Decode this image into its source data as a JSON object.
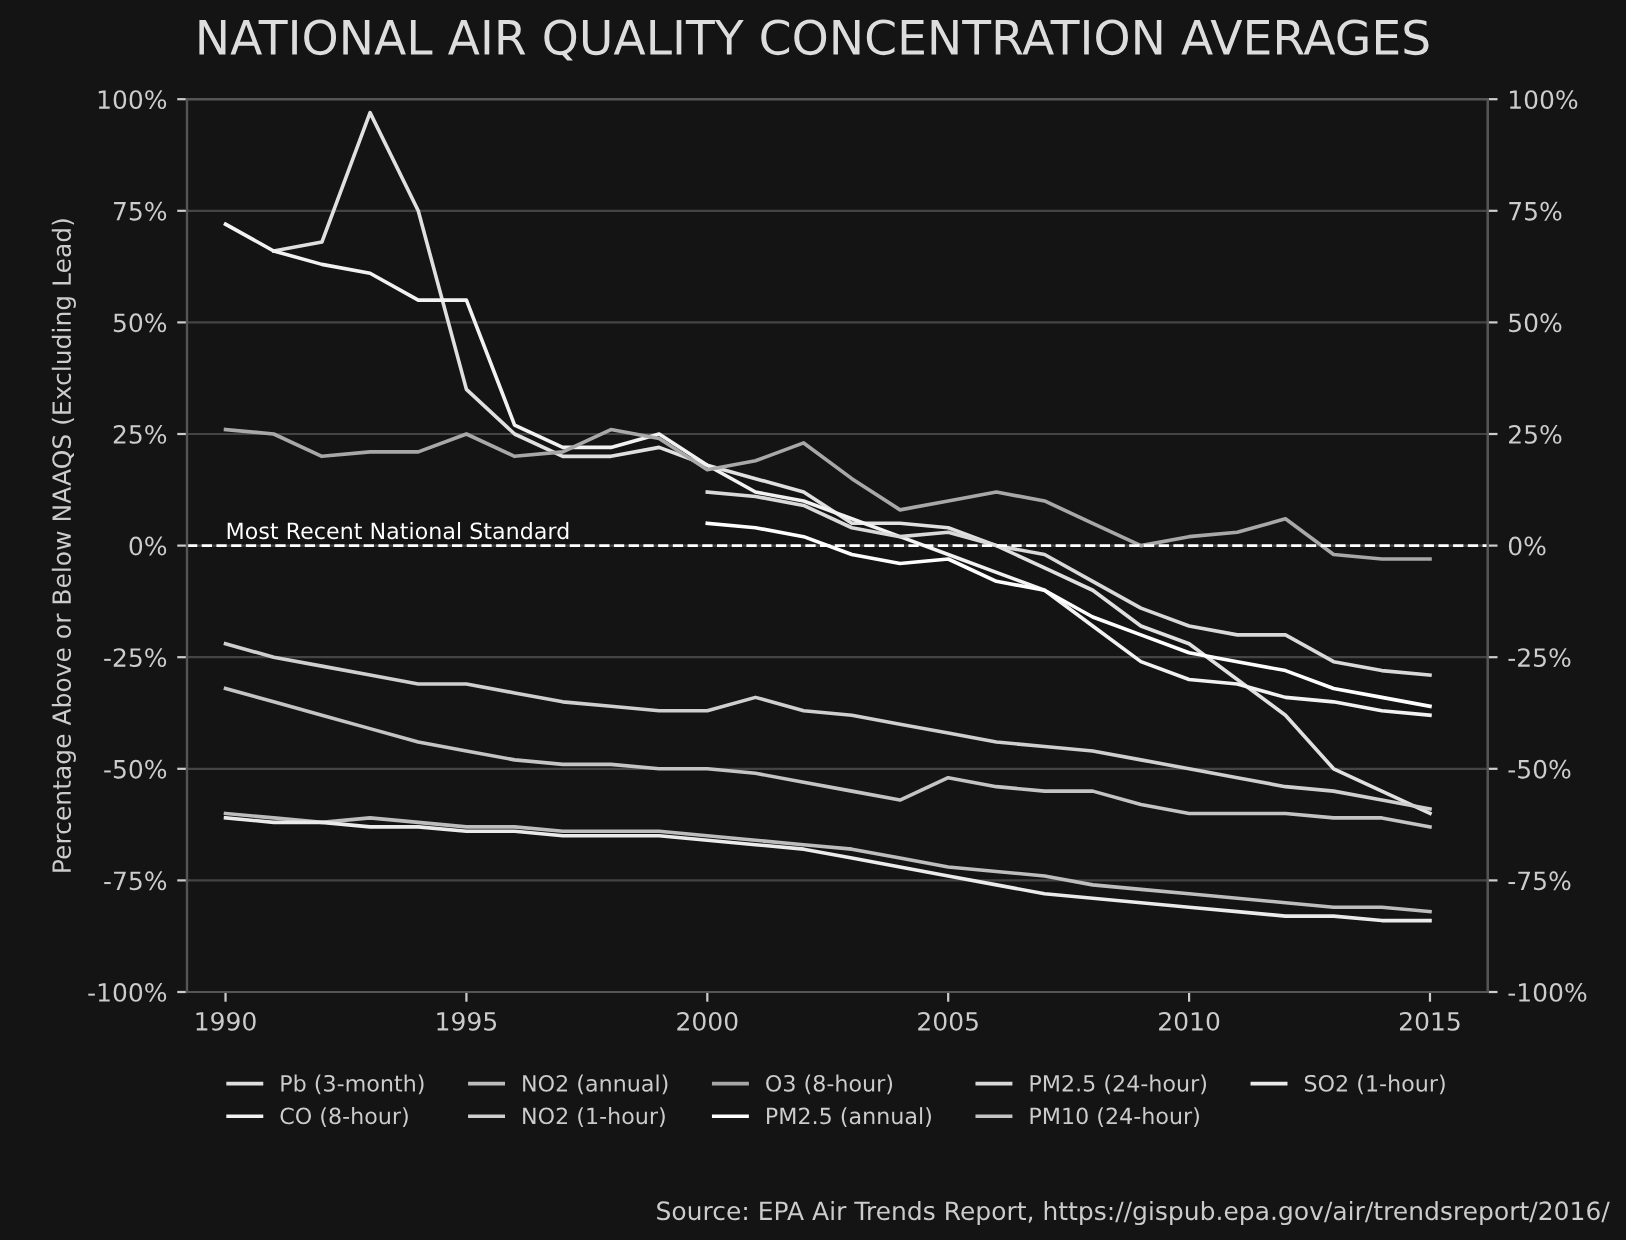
{
  "chart_data": {
    "type": "line",
    "title": "NATIONAL AIR QUALITY CONCENTRATION AVERAGES",
    "ylabel": "Percentage Above or Below NAAQS (Excluding Lead)",
    "x": [
      1990,
      1991,
      1992,
      1993,
      1994,
      1995,
      1996,
      1997,
      1998,
      1999,
      2000,
      2001,
      2002,
      2003,
      2004,
      2005,
      2006,
      2007,
      2008,
      2009,
      2010,
      2011,
      2012,
      2013,
      2014,
      2015
    ],
    "series": [
      {
        "name": "Pb (3-month)",
        "color": "#e0e0e0",
        "values": [
          null,
          66,
          68,
          97,
          75,
          35,
          25,
          20,
          20,
          22,
          18,
          15,
          12,
          5,
          5,
          4,
          0,
          -5,
          -10,
          -18,
          -22,
          -30,
          -38,
          -50,
          -55,
          -60
        ]
      },
      {
        "name": "CO (8-hour)",
        "color": "#f2f2f2",
        "values": [
          72,
          66,
          63,
          61,
          55,
          55,
          27,
          22,
          22,
          25,
          18,
          12,
          10,
          6,
          2,
          -2,
          -6,
          -10,
          -18,
          -26,
          -30,
          -31,
          -34,
          -35,
          -37,
          -38
        ]
      },
      {
        "name": "NO2 (annual)",
        "color": "#bdbdbd",
        "values": [
          -60,
          -61,
          -62,
          -61,
          -62,
          -63,
          -63,
          -64,
          -64,
          -64,
          -65,
          -66,
          -67,
          -68,
          -70,
          -72,
          -73,
          -74,
          -76,
          -77,
          -78,
          -79,
          -80,
          -81,
          -81,
          -82
        ]
      },
      {
        "name": "NO2 (1-hour)",
        "color": "#cfcfcf",
        "values": [
          -22,
          -25,
          -27,
          -29,
          -31,
          -31,
          -33,
          -35,
          -36,
          -37,
          -37,
          -34,
          -37,
          -38,
          -40,
          -42,
          -44,
          -45,
          -46,
          -48,
          -50,
          -52,
          -54,
          -55,
          -57,
          -59
        ]
      },
      {
        "name": "O3 (8-hour)",
        "color": "#a8a8a8",
        "values": [
          26,
          25,
          20,
          21,
          21,
          25,
          20,
          21,
          26,
          24,
          17,
          19,
          23,
          15,
          8,
          10,
          12,
          10,
          5,
          0,
          2,
          3,
          6,
          -2,
          -3,
          -3
        ]
      },
      {
        "name": "PM2.5 (annual)",
        "color": "#ffffff",
        "values": [
          null,
          null,
          null,
          null,
          null,
          null,
          null,
          null,
          null,
          null,
          5,
          4,
          2,
          -2,
          -4,
          -3,
          -8,
          -10,
          -16,
          -20,
          -24,
          -26,
          -28,
          -32,
          -34,
          -36
        ]
      },
      {
        "name": "PM2.5 (24-hour)",
        "color": "#d9d9d9",
        "values": [
          null,
          null,
          null,
          null,
          null,
          null,
          null,
          null,
          null,
          null,
          12,
          11,
          9,
          4,
          2,
          3,
          0,
          -2,
          -8,
          -14,
          -18,
          -20,
          -20,
          -26,
          -28,
          -29
        ]
      },
      {
        "name": "PM10 (24-hour)",
        "color": "#c4c4c4",
        "values": [
          -32,
          -35,
          -38,
          -41,
          -44,
          -46,
          -48,
          -49,
          -49,
          -50,
          -50,
          -51,
          -53,
          -55,
          -57,
          -52,
          -54,
          -55,
          -55,
          -58,
          -60,
          -60,
          -60,
          -61,
          -61,
          -63
        ]
      },
      {
        "name": "SO2 (1-hour)",
        "color": "#ebebeb",
        "values": [
          -61,
          -62,
          -62,
          -63,
          -63,
          -64,
          -64,
          -65,
          -65,
          -65,
          -66,
          -67,
          -68,
          -70,
          -72,
          -74,
          -76,
          -78,
          -79,
          -80,
          -81,
          -82,
          -83,
          -83,
          -84,
          -84
        ]
      }
    ],
    "xlim": [
      1989.2,
      2016.2
    ],
    "xticks": [
      1990,
      1995,
      2000,
      2005,
      2010,
      2015
    ],
    "ylim": [
      -100,
      100
    ],
    "yticks": [
      {
        "value": -100,
        "label": "-100%"
      },
      {
        "value": -75,
        "label": "-75%"
      },
      {
        "value": -50,
        "label": "-50%"
      },
      {
        "value": -25,
        "label": "-25%"
      },
      {
        "value": 0,
        "label": "0%"
      },
      {
        "value": 25,
        "label": "25%"
      },
      {
        "value": 50,
        "label": "50%"
      },
      {
        "value": 75,
        "label": "75%"
      },
      {
        "value": 100,
        "label": "100%"
      }
    ],
    "y2lim": [
      -100,
      100
    ],
    "y2ticks": [
      {
        "value": -100,
        "label": "-100%"
      },
      {
        "value": -75,
        "label": "-75%"
      },
      {
        "value": -50,
        "label": "-50%"
      },
      {
        "value": -25,
        "label": "-25%"
      },
      {
        "value": 0,
        "label": "0%"
      },
      {
        "value": 25,
        "label": "25%"
      },
      {
        "value": 50,
        "label": "50%"
      },
      {
        "value": 75,
        "label": "75%"
      },
      {
        "value": 100,
        "label": "100%"
      }
    ],
    "ref_lines": [
      {
        "axis": "y",
        "value": 0,
        "label": "Most Recent National Standard",
        "color": "#ffffff",
        "line_style": "dashed"
      }
    ],
    "annotations": [
      "Source: EPA Air Trends Report, https://gispub.epa.gov/air/trendsreport/2016/"
    ],
    "grid": "y",
    "legend": "bottom",
    "marker": "none",
    "line_style": "solid"
  }
}
